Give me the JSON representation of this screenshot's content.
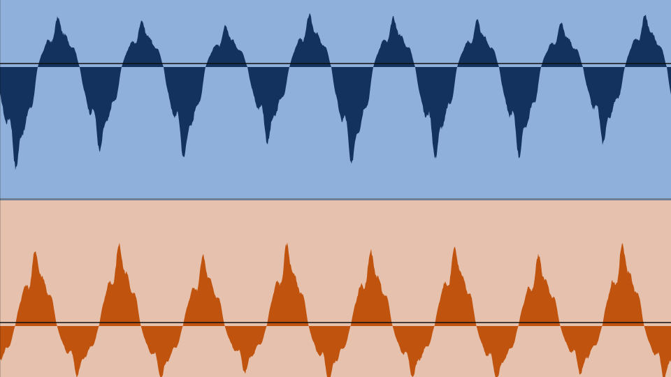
{
  "tracks": [
    {
      "id": "track-1",
      "background_color": "#8fb0da",
      "waveform_color": "#13335e",
      "polarity": "upper-small",
      "peaks": [
        {
          "up": 0.38,
          "down": 0.6
        },
        {
          "up": 0.36,
          "down": 0.5
        },
        {
          "up": 0.34,
          "down": 0.54
        },
        {
          "up": 0.3,
          "down": 0.45
        },
        {
          "up": 0.38,
          "down": 0.58
        },
        {
          "up": 0.36,
          "down": 0.54
        },
        {
          "up": 0.34,
          "down": 0.53
        },
        {
          "up": 0.32,
          "down": 0.45
        }
      ]
    },
    {
      "id": "track-2",
      "background_color": "#e6c2ae",
      "waveform_color": "#c0530e",
      "polarity": "upper-large",
      "peaks": [
        {
          "up": 0.54,
          "down": 0.36
        },
        {
          "up": 0.5,
          "down": 0.34
        },
        {
          "up": 0.54,
          "down": 0.36
        },
        {
          "up": 0.47,
          "down": 0.32
        },
        {
          "up": 0.54,
          "down": 0.37
        },
        {
          "up": 0.5,
          "down": 0.35
        },
        {
          "up": 0.53,
          "down": 0.37
        },
        {
          "up": 0.47,
          "down": 0.33
        }
      ]
    }
  ],
  "divider_color": "#6f7f93",
  "zero_line_color": "#111111",
  "cycles_visible": 8
}
